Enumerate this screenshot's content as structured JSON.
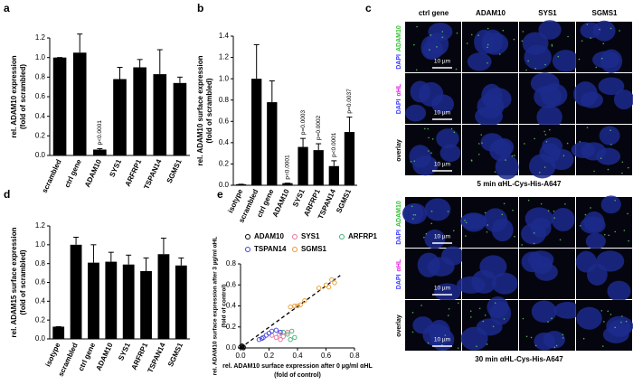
{
  "chart_data": [
    {
      "type": "bar",
      "panel": "a",
      "ylabel": [
        "rel. ADAM10 expression",
        "(fold of scrambled)"
      ],
      "categories": [
        "scrambled",
        "ctrl gene",
        "ADAM10",
        "SYS1",
        "ARFRP1",
        "TSPAN14",
        "SGMS1"
      ],
      "values": [
        1.0,
        1.05,
        0.06,
        0.78,
        0.9,
        0.83,
        0.74
      ],
      "errors": [
        0,
        0.19,
        0.01,
        0.12,
        0.08,
        0.25,
        0.06
      ],
      "p_values": [
        null,
        null,
        "p<0.0001",
        null,
        null,
        null,
        null
      ],
      "color": "#000000",
      "ylim": [
        0,
        1.2
      ],
      "yticks": [
        {
          "value": 0,
          "label": "0.0"
        },
        0.2,
        0.4,
        0.6,
        0.8,
        {
          "value": 1,
          "label": "1.0"
        },
        1.2
      ]
    },
    {
      "type": "bar",
      "panel": "b",
      "ylabel": [
        "rel. ADAM10 surface expression",
        "(fold of scrambled)"
      ],
      "categories": [
        "isotype",
        "scrambled",
        "ctrl gene",
        "ADAM10",
        "SYS1",
        "ARFRP1",
        "TSPAN14",
        "SGMS1"
      ],
      "values": [
        0.01,
        1.0,
        0.78,
        0.02,
        0.36,
        0.33,
        0.18,
        0.5
      ],
      "errors": [
        0,
        0.32,
        0.2,
        0,
        0.08,
        0.06,
        0.05,
        0.14
      ],
      "p_values": [
        null,
        null,
        null,
        "p<0.0001",
        "p=0.0003",
        "p=0.0002",
        "p<0.0001",
        "p=0.0037"
      ],
      "color": "#000000",
      "ylim": [
        0,
        1.4
      ],
      "yticks": [
        {
          "value": 0,
          "label": "0.0"
        },
        0.2,
        0.4,
        0.6,
        0.8,
        {
          "value": 1,
          "label": "1.0"
        },
        1.2,
        1.4
      ]
    },
    {
      "type": "bar",
      "panel": "d",
      "ylabel": [
        "rel. ADAM15 surface expression",
        "(fold of scrambled)"
      ],
      "categories": [
        "isotype",
        "scrambled",
        "ctrl gene",
        "ADAM10",
        "SYS1",
        "ARFRP1",
        "TSPAN14",
        "SGMS1"
      ],
      "values": [
        0.13,
        1.0,
        0.81,
        0.82,
        0.79,
        0.72,
        0.9,
        0.78
      ],
      "errors": [
        0,
        0.08,
        0.19,
        0.1,
        0.1,
        0.14,
        0.17,
        0.08
      ],
      "color": "#000000",
      "ylim": [
        0,
        1.2
      ],
      "yticks": [
        {
          "value": 0,
          "label": "0.0"
        },
        0.2,
        0.4,
        0.6,
        0.8,
        {
          "value": 1,
          "label": "1.0"
        },
        1.2
      ]
    },
    {
      "type": "scatter",
      "panel": "e",
      "xlabel": [
        "rel. ADAM10 surface expression after  0 µg/ml αHL",
        "(fold of control)"
      ],
      "ylabel": [
        "rel. ADAM10 surface expression after  3 µg/ml αHL",
        "(fold of control)"
      ],
      "legend": "top",
      "series": [
        {
          "name": "ADAM10",
          "color": "#000000",
          "x": [
            0.01,
            0.02,
            0.0,
            0.01,
            0.02
          ],
          "values": [
            0.01,
            0.0,
            0.01,
            0.02,
            0.01
          ]
        },
        {
          "name": "SYS1",
          "color": "#e8739a",
          "x": [
            0.22,
            0.25,
            0.27,
            0.3,
            0.33,
            0.28
          ],
          "values": [
            0.12,
            0.1,
            0.13,
            0.11,
            0.15,
            0.08
          ]
        },
        {
          "name": "ARFRP1",
          "color": "#3cb371",
          "x": [
            0.3,
            0.33,
            0.38,
            0.36,
            0.35
          ],
          "values": [
            0.15,
            0.13,
            0.1,
            0.16,
            0.08
          ]
        },
        {
          "name": "TSPAN14",
          "color": "#4040e0",
          "x": [
            0.13,
            0.16,
            0.18,
            0.2,
            0.22,
            0.25,
            0.28,
            0.15
          ],
          "values": [
            0.08,
            0.1,
            0.12,
            0.14,
            0.16,
            0.17,
            0.15,
            0.09
          ]
        },
        {
          "name": "SGMS1",
          "color": "#e89a30",
          "x": [
            0.35,
            0.38,
            0.4,
            0.42,
            0.45,
            0.55,
            0.6,
            0.64,
            0.66,
            0.62
          ],
          "values": [
            0.39,
            0.4,
            0.4,
            0.41,
            0.45,
            0.57,
            0.6,
            0.65,
            0.62,
            0.58
          ]
        }
      ],
      "trend": {
        "x": [
          0,
          0.7
        ],
        "y": [
          0,
          0.69
        ]
      },
      "xlim": [
        0,
        0.8
      ],
      "xticks": [
        {
          "value": 0,
          "label": "0.0"
        },
        0.2,
        0.4,
        0.6,
        0.8
      ],
      "ylim": [
        0,
        0.8
      ],
      "yticks": [
        {
          "value": 0,
          "label": "0.0"
        },
        0.2,
        0.4,
        0.6,
        0.8
      ]
    }
  ],
  "microscopy": {
    "panel": "c",
    "columns": [
      "ctrl gene",
      "ADAM10",
      "SYS1",
      "SGMS1"
    ],
    "row_labels": [
      [
        "DAPI",
        "ADAM10"
      ],
      [
        "DAPI",
        "αHL"
      ],
      [
        "overlay"
      ]
    ],
    "scale_bar": "10 µm",
    "captions": [
      "5 min αHL-Cys-His-A647",
      "30 min αHL-Cys-His-A647"
    ]
  }
}
